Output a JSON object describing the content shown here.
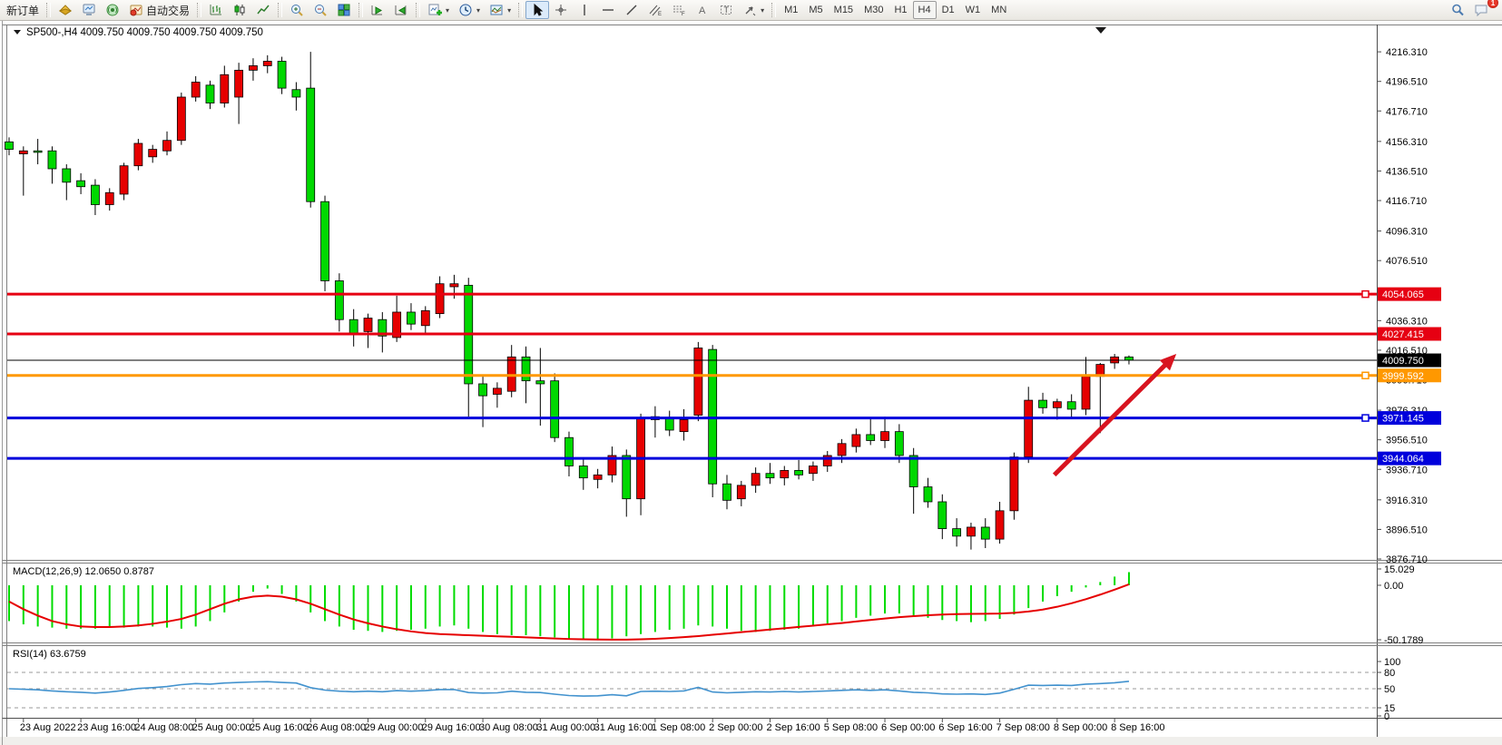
{
  "toolbar": {
    "new_order_label": "新订单",
    "autotrading_label": "自动交易",
    "timeframes": [
      "M1",
      "M5",
      "M15",
      "M30",
      "H1",
      "H4",
      "D1",
      "W1",
      "MN"
    ],
    "active_timeframe": "H4",
    "notification_count": "1"
  },
  "window": {
    "title_symbol": "SP500-,H4",
    "title_quotes": "4009.750 4009.750 4009.750 4009.750"
  },
  "chart_data": {
    "type": "candlestick",
    "symbol": "SP500-",
    "timeframe": "H4",
    "current_price": "4009.750",
    "up_color": "#e60000",
    "down_color": "#00d800",
    "price_axis_ticks": [
      "4216.310",
      "4196.510",
      "4176.710",
      "4156.310",
      "4136.510",
      "4116.710",
      "4096.310",
      "4076.510",
      "4036.310",
      "4016.510",
      "3996.710",
      "3976.310",
      "3956.510",
      "3936.710",
      "3916.310",
      "3896.510",
      "3876.710"
    ],
    "hlines": [
      {
        "price": 4054.065,
        "label": "4054.065",
        "color": "#e60012",
        "width": 3,
        "marker": true
      },
      {
        "price": 4027.415,
        "label": "4027.415",
        "color": "#e60012",
        "width": 3,
        "marker": false
      },
      {
        "price": 4009.75,
        "label": "4009.750",
        "color": "#000000",
        "width": 1,
        "marker": false
      },
      {
        "price": 3999.592,
        "label": "3999.592",
        "color": "#ff9800",
        "width": 3,
        "marker": true
      },
      {
        "price": 3971.145,
        "label": "3971.145",
        "color": "#0000dc",
        "width": 3,
        "marker": true
      },
      {
        "price": 3944.064,
        "label": "3944.064",
        "color": "#0000dc",
        "width": 3,
        "marker": false
      }
    ],
    "candles": [
      [
        4156,
        4159,
        4147,
        4151
      ],
      [
        4148,
        4153,
        4120,
        4150
      ],
      [
        4150,
        4158,
        4141,
        4149
      ],
      [
        4150,
        4153,
        4128,
        4138
      ],
      [
        4138,
        4141,
        4117,
        4129
      ],
      [
        4130,
        4135,
        4121,
        4126
      ],
      [
        4127,
        4131,
        4107,
        4114
      ],
      [
        4114,
        4125,
        4110,
        4122
      ],
      [
        4121,
        4142,
        4117,
        4140
      ],
      [
        4140,
        4158,
        4137,
        4155
      ],
      [
        4146,
        4154,
        4142,
        4151
      ],
      [
        4150,
        4163,
        4147,
        4157
      ],
      [
        4157,
        4189,
        4154,
        4186
      ],
      [
        4186,
        4200,
        4183,
        4196
      ],
      [
        4194,
        4197,
        4178,
        4182
      ],
      [
        4182,
        4207,
        4179,
        4201
      ],
      [
        4186,
        4209,
        4168,
        4204
      ],
      [
        4204,
        4212,
        4197,
        4207
      ],
      [
        4207,
        4214,
        4202,
        4210
      ],
      [
        4210,
        4213,
        4188,
        4192
      ],
      [
        4191,
        4196,
        4177,
        4186
      ],
      [
        4192,
        4216.3,
        4112,
        4116
      ],
      [
        4116,
        4120,
        4056,
        4063
      ],
      [
        4063,
        4068,
        4029,
        4037
      ],
      [
        4037,
        4044,
        4019,
        4027
      ],
      [
        4029,
        4041,
        4018,
        4038
      ],
      [
        4037,
        4042,
        4015,
        4026
      ],
      [
        4025,
        4053,
        4022,
        4042
      ],
      [
        4042,
        4048,
        4030,
        4034
      ],
      [
        4033,
        4046,
        4028,
        4043
      ],
      [
        4041,
        4066,
        4038,
        4061
      ],
      [
        4059,
        4067,
        4051,
        4061
      ],
      [
        4060,
        4065,
        3972,
        3994
      ],
      [
        3994,
        3999,
        3965,
        3986
      ],
      [
        3987,
        3995,
        3978,
        3991
      ],
      [
        3989,
        4020,
        3985,
        4012
      ],
      [
        4012,
        4019,
        3981,
        3996
      ],
      [
        3996,
        4018,
        3966,
        3994
      ],
      [
        3996,
        4001,
        3955,
        3958
      ],
      [
        3958,
        3962,
        3932,
        3939
      ],
      [
        3939,
        3944,
        3923,
        3931
      ],
      [
        3930,
        3937,
        3924,
        3933
      ],
      [
        3933,
        3952,
        3928,
        3946
      ],
      [
        3946,
        3950,
        3905,
        3917
      ],
      [
        3917,
        3974,
        3906,
        3971
      ],
      [
        3970,
        3979,
        3958,
        3972
      ],
      [
        3971,
        3976,
        3959,
        3963
      ],
      [
        3962,
        3977,
        3956,
        3970
      ],
      [
        3973,
        4022,
        3969,
        4018
      ],
      [
        4017,
        4020,
        3918,
        3927
      ],
      [
        3927,
        3933,
        3910,
        3916
      ],
      [
        3917,
        3929,
        3912,
        3926
      ],
      [
        3926,
        3938,
        3921,
        3934
      ],
      [
        3934,
        3941,
        3927,
        3931
      ],
      [
        3931,
        3939,
        3926,
        3936
      ],
      [
        3936,
        3943,
        3930,
        3933
      ],
      [
        3934,
        3942,
        3929,
        3939
      ],
      [
        3939,
        3949,
        3935,
        3946
      ],
      [
        3946,
        3957,
        3941,
        3954
      ],
      [
        3952,
        3964,
        3948,
        3960
      ],
      [
        3960,
        3971,
        3953,
        3956
      ],
      [
        3956,
        3972,
        3951,
        3962
      ],
      [
        3962,
        3967,
        3941,
        3946
      ],
      [
        3946,
        3951,
        3907,
        3925
      ],
      [
        3925,
        3931,
        3911,
        3915
      ],
      [
        3915,
        3920,
        3890,
        3897
      ],
      [
        3897,
        3904,
        3885,
        3892
      ],
      [
        3892,
        3901,
        3883,
        3898
      ],
      [
        3898,
        3904,
        3884,
        3890
      ],
      [
        3890,
        3915,
        3887,
        3909
      ],
      [
        3909,
        3948,
        3903,
        3945
      ],
      [
        3945,
        3992,
        3941,
        3983
      ],
      [
        3983,
        3988,
        3974,
        3978
      ],
      [
        3978,
        3984,
        3970,
        3982
      ],
      [
        3982,
        3987,
        3971,
        3977
      ],
      [
        3977,
        4012,
        3973,
        3999
      ],
      [
        3999,
        4008,
        3961,
        4007
      ],
      [
        4008,
        4014,
        4004,
        4012
      ],
      [
        4012,
        4013,
        4007,
        4009.8
      ]
    ],
    "date_labels": [
      "23 Aug 2022",
      "23 Aug 16:00",
      "24 Aug 08:00",
      "25 Aug 00:00",
      "25 Aug 16:00",
      "26 Aug 08:00",
      "29 Aug 00:00",
      "29 Aug 16:00",
      "30 Aug 08:00",
      "31 Aug 00:00",
      "31 Aug 16:00",
      "1 Sep 08:00",
      "2 Sep 00:00",
      "2 Sep 16:00",
      "5 Sep 08:00",
      "6 Sep 00:00",
      "6 Sep 16:00",
      "7 Sep 08:00",
      "8 Sep 00:00",
      "8 Sep 16:00"
    ],
    "macd": {
      "name": "MACD",
      "params": "(12,26,9)",
      "value": "12.0650",
      "signal_value": "0.8787",
      "scale_max": "15.029",
      "scale_zero": "0.00",
      "scale_min": "-50.1789",
      "histogram_color": "#00dc00",
      "signal_color": "#e60000",
      "histogram": [
        -33,
        -36,
        -38,
        -39,
        -40,
        -40,
        -40,
        -39,
        -39,
        -38,
        -38,
        -39,
        -40,
        -38,
        -33,
        -25,
        -15,
        -6,
        -3,
        -8,
        -15,
        -25,
        -33,
        -38,
        -41,
        -42,
        -43,
        -42,
        -41,
        -40,
        -38,
        -37,
        -40,
        -43,
        -45,
        -46,
        -46,
        -47,
        -48,
        -49,
        -50,
        -50.2,
        -49,
        -47,
        -45,
        -43,
        -41,
        -40,
        -37,
        -38,
        -40,
        -42,
        -43,
        -42,
        -41,
        -40,
        -38,
        -36,
        -33,
        -30,
        -28,
        -26,
        -26,
        -28,
        -30,
        -32,
        -33,
        -34,
        -33,
        -31,
        -27,
        -21,
        -15,
        -10,
        -6,
        -2,
        3,
        8,
        12.1
      ],
      "signal": [
        -15,
        -22,
        -28,
        -33,
        -36,
        -38,
        -38.5,
        -38.5,
        -38,
        -37,
        -35.5,
        -33.5,
        -31,
        -27,
        -22,
        -17,
        -13,
        -10.5,
        -9.5,
        -10.5,
        -13,
        -17,
        -22,
        -27,
        -31.5,
        -35,
        -38,
        -40.5,
        -42.5,
        -44,
        -45,
        -45.5,
        -46,
        -46.5,
        -47,
        -47.5,
        -48,
        -48.5,
        -49,
        -49.5,
        -49.8,
        -50,
        -50.1,
        -50.1,
        -49.8,
        -49.3,
        -48.6,
        -47.8,
        -46.8,
        -45.6,
        -44.4,
        -43.2,
        -42,
        -40.8,
        -39.6,
        -38.4,
        -37.2,
        -36,
        -34.8,
        -33.4,
        -32,
        -30.6,
        -29.4,
        -28.4,
        -27.6,
        -27,
        -26.6,
        -26.4,
        -26.2,
        -26,
        -25.4,
        -24.2,
        -22.4,
        -19.8,
        -16.6,
        -12.8,
        -8.6,
        -4,
        0.9
      ]
    },
    "rsi": {
      "name": "RSI",
      "params": "(14)",
      "value": "63.6759",
      "line_color": "#4292ce",
      "level_labels": [
        "100",
        "80",
        "50",
        "15",
        "0"
      ],
      "dashed_levels": [
        80,
        50,
        15
      ],
      "series": [
        50,
        49,
        48,
        46,
        44.5,
        43.5,
        42,
        44,
        47,
        50.5,
        52,
        54,
        57.5,
        59.5,
        58.5,
        60.5,
        61.5,
        62.5,
        63,
        61.5,
        60.5,
        52,
        47.5,
        45.5,
        44.5,
        45.5,
        44.5,
        46.5,
        45.5,
        46.5,
        48.5,
        48.5,
        43,
        42,
        42.5,
        45.5,
        43.5,
        43,
        40,
        37.5,
        36.5,
        37,
        39,
        37,
        45,
        45.5,
        45,
        46,
        52.5,
        44,
        42.5,
        43.5,
        44.5,
        44,
        45,
        44,
        45,
        46,
        47,
        48,
        47,
        48,
        46,
        43.5,
        42.5,
        40.5,
        40,
        40.5,
        39.5,
        42,
        49,
        56.5,
        56,
        56.5,
        56,
        58.5,
        59.5,
        61,
        63.7
      ]
    },
    "arrow": {
      "from_bar": 72.8,
      "from_price": 3933,
      "to_bar": 81.3,
      "to_price": 4014,
      "color": "#d81420"
    }
  }
}
